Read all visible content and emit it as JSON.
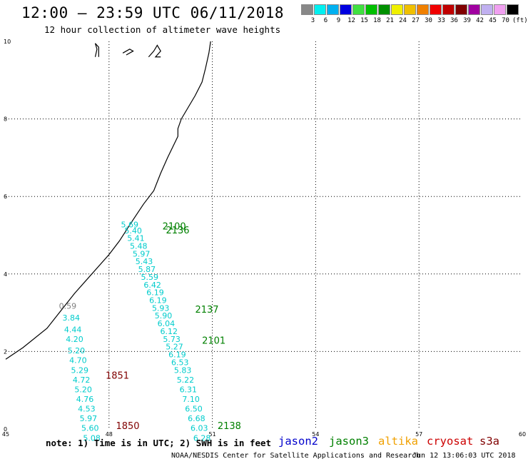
{
  "title": "12:00 – 23:59 UTC 06/11/2018",
  "subtitle": "12 hour collection of altimeter wave heights",
  "scale": {
    "colors": [
      "#888888",
      "#00f0f0",
      "#00b0f0",
      "#0000e0",
      "#40e040",
      "#00c000",
      "#009000",
      "#f0f000",
      "#f0c000",
      "#f08000",
      "#f00000",
      "#c00000",
      "#800000",
      "#a000a0",
      "#c0b0f0",
      "#f0a0f0",
      "#000000"
    ],
    "labels": [
      "3",
      "6",
      "9",
      "12",
      "15",
      "18",
      "21",
      "24",
      "27",
      "30",
      "33",
      "36",
      "39",
      "42",
      "45",
      "70",
      "(ft)"
    ]
  },
  "map": {
    "lon_min": 45,
    "lon_max": 60,
    "lat_min": 0,
    "lat_max": 10,
    "lon_ticks": [
      45,
      48,
      51,
      54,
      57,
      60
    ],
    "lat_ticks": [
      0,
      2,
      4,
      6,
      8,
      10
    ],
    "coastline": [
      [
        45.0,
        1.8
      ],
      [
        45.5,
        2.1
      ],
      [
        46.2,
        2.6
      ],
      [
        46.6,
        3.05
      ],
      [
        47.0,
        3.5
      ],
      [
        47.5,
        4.0
      ],
      [
        48.0,
        4.5
      ],
      [
        48.3,
        4.85
      ],
      [
        48.7,
        5.4
      ],
      [
        49.0,
        5.8
      ],
      [
        49.3,
        6.15
      ],
      [
        49.5,
        6.6
      ],
      [
        49.7,
        7.0
      ],
      [
        50.0,
        7.55
      ],
      [
        50.0,
        7.75
      ],
      [
        50.1,
        8.0
      ],
      [
        50.5,
        8.6
      ],
      [
        50.7,
        8.95
      ],
      [
        50.8,
        9.3
      ],
      [
        50.9,
        9.7
      ],
      [
        50.95,
        10.0
      ]
    ],
    "islands": [
      [
        [
          47.6,
          9.6
        ],
        [
          47.65,
          9.8
        ],
        [
          47.6,
          9.95
        ],
        [
          47.7,
          9.85
        ],
        [
          47.7,
          9.6
        ]
      ],
      [
        [
          48.4,
          9.7
        ],
        [
          48.5,
          9.75
        ],
        [
          48.6,
          9.8
        ],
        [
          48.7,
          9.75
        ],
        [
          48.5,
          9.65
        ]
      ],
      [
        [
          49.15,
          9.6
        ],
        [
          49.3,
          9.75
        ],
        [
          49.4,
          9.9
        ],
        [
          49.5,
          9.75
        ],
        [
          49.35,
          9.6
        ],
        [
          49.5,
          9.6
        ]
      ]
    ]
  },
  "passes": [
    {
      "time": "2100",
      "lon": 49.55,
      "lat": 5.15,
      "color": "#008000"
    },
    {
      "time": "2136",
      "lon": 49.65,
      "lat": 5.05,
      "color": "#008000"
    },
    {
      "time": "2137",
      "lon": 50.5,
      "lat": 3.0,
      "color": "#008000"
    },
    {
      "time": "2101",
      "lon": 50.7,
      "lat": 2.2,
      "color": "#008000"
    },
    {
      "time": "1851",
      "lon": 47.9,
      "lat": 1.3,
      "color": "#800000"
    },
    {
      "time": "1850",
      "lon": 48.2,
      "lat": 0.0,
      "color": "#800000"
    },
    {
      "time": "2138",
      "lon": 51.15,
      "lat": 0.0,
      "color": "#008000"
    }
  ],
  "wave_heights": {
    "left_track": [
      {
        "lon": 46.8,
        "lat": 3.1,
        "swh": "0.59",
        "color": "#808080"
      },
      {
        "lon": 46.9,
        "lat": 2.8,
        "swh": "3.84",
        "color": "#00cccc"
      },
      {
        "lon": 46.95,
        "lat": 2.5,
        "swh": "4.44",
        "color": "#00cccc"
      },
      {
        "lon": 47.0,
        "lat": 2.25,
        "swh": "4.20",
        "color": "#00cccc"
      },
      {
        "lon": 47.05,
        "lat": 1.95,
        "swh": "5.20",
        "color": "#00cccc"
      },
      {
        "lon": 47.1,
        "lat": 1.7,
        "swh": "4.70",
        "color": "#00cccc"
      },
      {
        "lon": 47.15,
        "lat": 1.45,
        "swh": "5.29",
        "color": "#00cccc"
      },
      {
        "lon": 47.2,
        "lat": 1.2,
        "swh": "4.72",
        "color": "#00cccc"
      },
      {
        "lon": 47.25,
        "lat": 0.95,
        "swh": "5.20",
        "color": "#00cccc"
      },
      {
        "lon": 47.3,
        "lat": 0.7,
        "swh": "4.76",
        "color": "#00cccc"
      },
      {
        "lon": 47.35,
        "lat": 0.45,
        "swh": "4.53",
        "color": "#00cccc"
      },
      {
        "lon": 47.4,
        "lat": 0.2,
        "swh": "5.97",
        "color": "#00cccc"
      },
      {
        "lon": 47.45,
        "lat": -0.05,
        "swh": "5.60",
        "color": "#00cccc"
      },
      {
        "lon": 47.5,
        "lat": -0.3,
        "swh": "5.08",
        "color": "#00cccc"
      }
    ],
    "right_track": [
      {
        "lon": 48.6,
        "lat": 5.2,
        "swh": "5.69",
        "color": "#00cccc"
      },
      {
        "lon": 48.7,
        "lat": 5.05,
        "swh": "5.40",
        "color": "#00cccc"
      },
      {
        "lon": 48.78,
        "lat": 4.85,
        "swh": "5.41",
        "color": "#00cccc"
      },
      {
        "lon": 48.86,
        "lat": 4.65,
        "swh": "5.48",
        "color": "#00cccc"
      },
      {
        "lon": 48.94,
        "lat": 4.45,
        "swh": "5.97",
        "color": "#00cccc"
      },
      {
        "lon": 49.02,
        "lat": 4.25,
        "swh": "5.43",
        "color": "#00cccc"
      },
      {
        "lon": 49.1,
        "lat": 4.05,
        "swh": "5.87",
        "color": "#00cccc"
      },
      {
        "lon": 49.18,
        "lat": 3.85,
        "swh": "5.59",
        "color": "#00cccc"
      },
      {
        "lon": 49.26,
        "lat": 3.65,
        "swh": "6.42",
        "color": "#00cccc"
      },
      {
        "lon": 49.34,
        "lat": 3.45,
        "swh": "6.19",
        "color": "#00cccc"
      },
      {
        "lon": 49.42,
        "lat": 3.25,
        "swh": "6.19",
        "color": "#00cccc"
      },
      {
        "lon": 49.5,
        "lat": 3.05,
        "swh": "5.93",
        "color": "#00cccc"
      },
      {
        "lon": 49.58,
        "lat": 2.85,
        "swh": "5.90",
        "color": "#00cccc"
      },
      {
        "lon": 49.66,
        "lat": 2.65,
        "swh": "6.04",
        "color": "#00cccc"
      },
      {
        "lon": 49.74,
        "lat": 2.45,
        "swh": "6.12",
        "color": "#00cccc"
      },
      {
        "lon": 49.82,
        "lat": 2.25,
        "swh": "5.73",
        "color": "#00cccc"
      },
      {
        "lon": 49.9,
        "lat": 2.05,
        "swh": "5.27",
        "color": "#00cccc"
      },
      {
        "lon": 49.98,
        "lat": 1.85,
        "swh": "6.19",
        "color": "#00cccc"
      },
      {
        "lon": 50.06,
        "lat": 1.65,
        "swh": "6.53",
        "color": "#00cccc"
      },
      {
        "lon": 50.14,
        "lat": 1.45,
        "swh": "5.83",
        "color": "#00cccc"
      },
      {
        "lon": 50.22,
        "lat": 1.2,
        "swh": "5.22",
        "color": "#00cccc"
      },
      {
        "lon": 50.3,
        "lat": 0.95,
        "swh": "6.31",
        "color": "#00cccc"
      },
      {
        "lon": 50.38,
        "lat": 0.7,
        "swh": "7.10",
        "color": "#00cccc"
      },
      {
        "lon": 50.46,
        "lat": 0.45,
        "swh": "6.50",
        "color": "#00cccc"
      },
      {
        "lon": 50.54,
        "lat": 0.2,
        "swh": "6.68",
        "color": "#00cccc"
      },
      {
        "lon": 50.62,
        "lat": -0.05,
        "swh": "6.03",
        "color": "#00cccc"
      },
      {
        "lon": 50.7,
        "lat": -0.3,
        "swh": "6.28",
        "color": "#00cccc"
      }
    ]
  },
  "footnote": "note: 1) Time is in UTC; 2) SWH is in feet",
  "satellites": [
    {
      "name": "jason2",
      "color": "#0000cc"
    },
    {
      "name": "jason3",
      "color": "#008000"
    },
    {
      "name": "altika",
      "color": "#f0a000"
    },
    {
      "name": "cryosat",
      "color": "#cc0000"
    },
    {
      "name": "s3a",
      "color": "#800000"
    }
  ],
  "credit": "NOAA/NESDIS Center for Satellite Applications and Research",
  "timestamp": "Jun 12 13:06:03 UTC 2018"
}
